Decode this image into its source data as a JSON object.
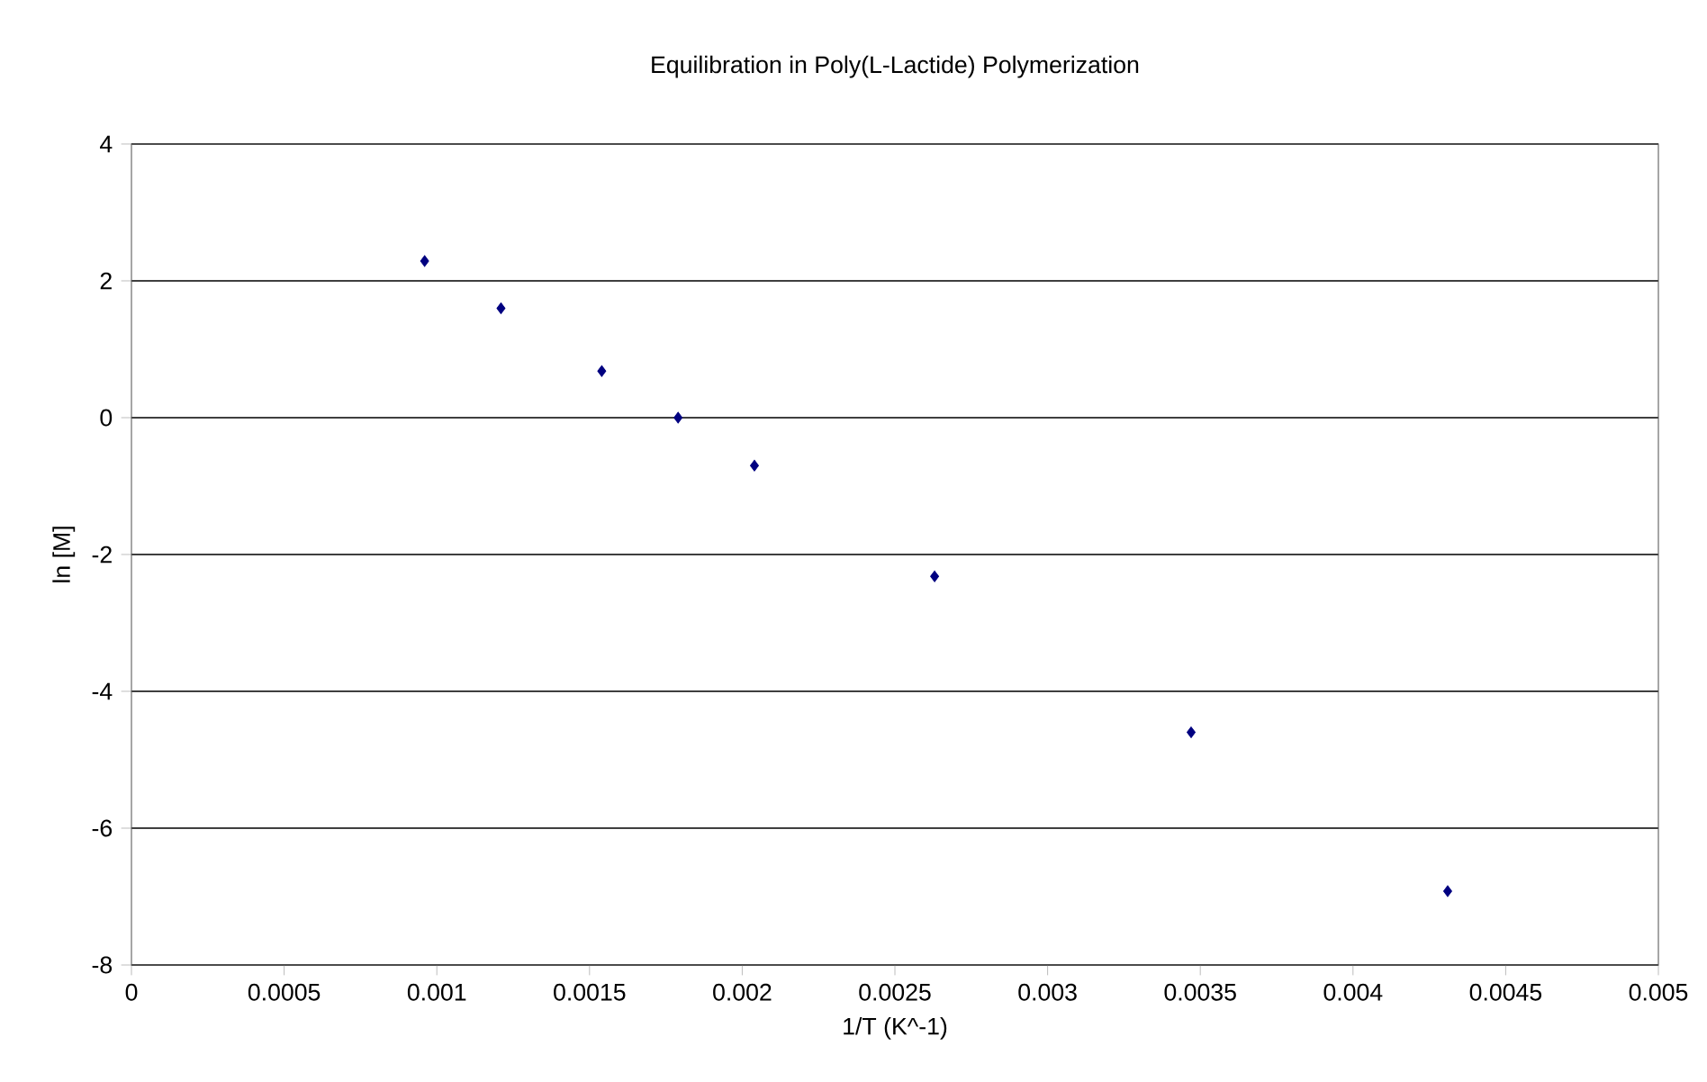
{
  "chart_data": {
    "type": "scatter",
    "title": "Equilibration in Poly(L-Lactide) Polymerization",
    "xlabel": "1/T (K^-1)",
    "ylabel": "ln [M]",
    "x": [
      0.00096,
      0.00121,
      0.00154,
      0.00179,
      0.00204,
      0.00263,
      0.00347,
      0.00431
    ],
    "series": [
      {
        "color": "#000080",
        "values": [
          2.29,
          1.6,
          0.68,
          0,
          -0.7,
          -2.32,
          -4.6,
          -6.92
        ]
      }
    ],
    "xlim": [
      0,
      0.005
    ],
    "xticks": [
      0,
      0.0005,
      0.001,
      0.0015,
      0.002,
      0.0025,
      0.003,
      0.0035,
      0.004,
      0.0045,
      0.005
    ],
    "ylim": [
      -8,
      4
    ],
    "yticks": [
      -8,
      -6,
      -4,
      -2,
      0,
      2,
      4
    ],
    "grid": "y",
    "marker": "diamond"
  }
}
